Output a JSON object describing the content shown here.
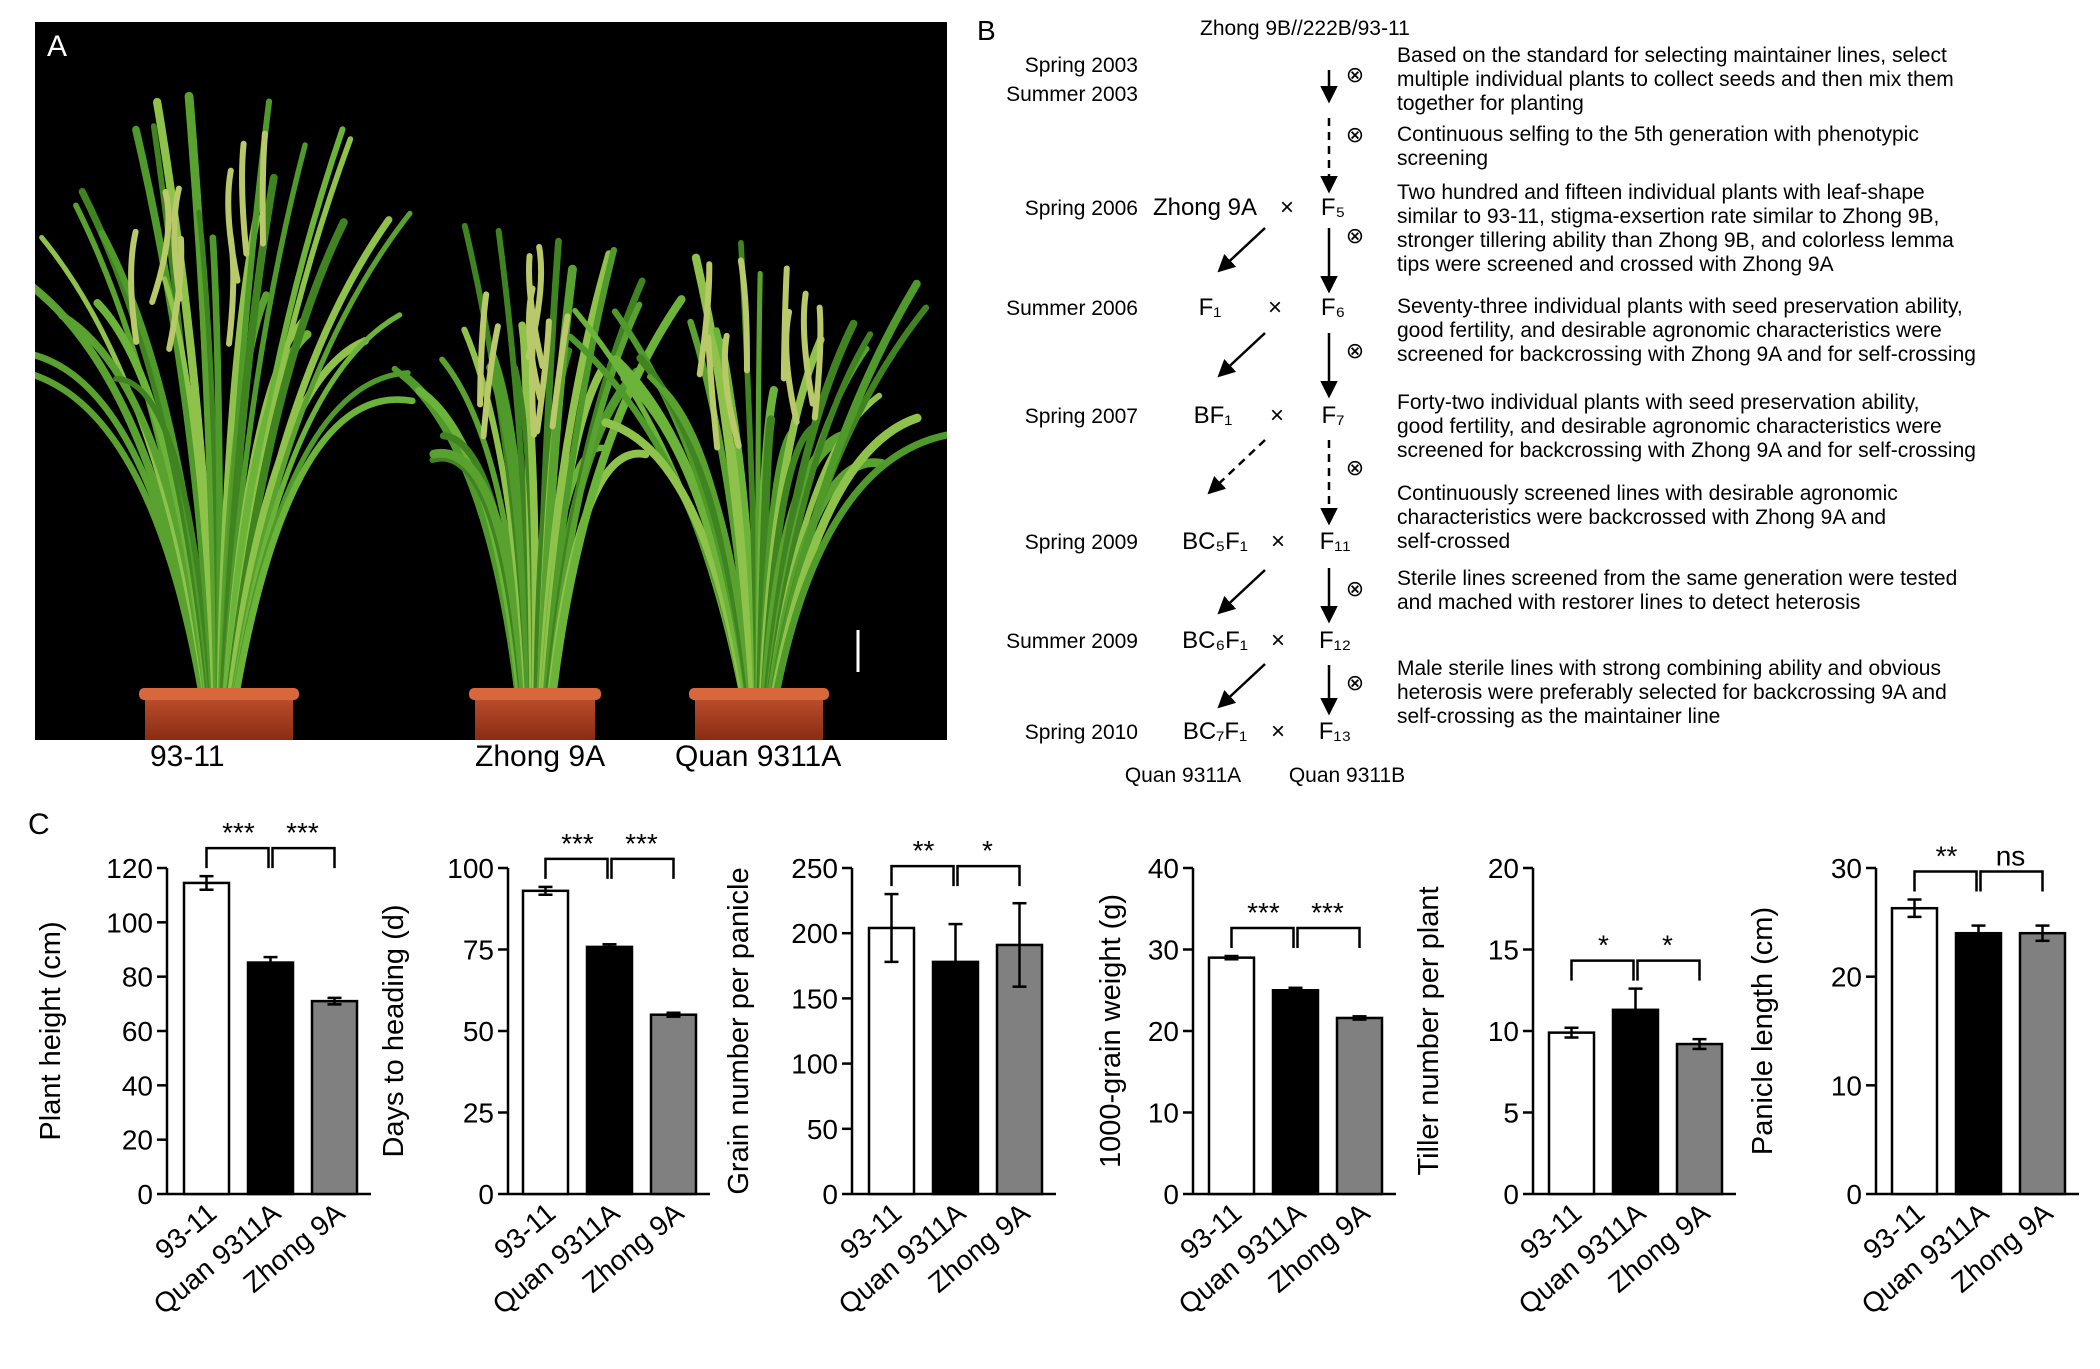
{
  "panel_a": {
    "letter": "A",
    "plant_labels": [
      "93-11",
      "Zhong 9A",
      "Quan 9311A"
    ]
  },
  "panel_b": {
    "letter": "B",
    "top_label": "Zhong 9B//222B/93-11",
    "years": [
      "Spring 2003",
      "Summer 2003",
      "Spring 2006",
      "Summer 2006",
      "Spring 2007",
      "Spring 2009",
      "Summer 2009",
      "Spring 2010"
    ],
    "left_generations": [
      "Zhong 9A",
      "F₁",
      "BF₁",
      "BC₅F₁",
      "BC₆F₁",
      "BC₇F₁"
    ],
    "right_generations": [
      "F₅",
      "F₆",
      "F₇",
      "F₁₁",
      "F₁₂",
      "F₁₃"
    ],
    "cross_symbol": "×",
    "self_symbol": "⊗",
    "final_labels": [
      "Quan 9311A",
      "Quan 9311B"
    ],
    "descriptions": [
      [
        "Based on the standard for selecting maintainer lines, select",
        "multiple individual plants to collect seeds and then mix them",
        "together for planting"
      ],
      [
        "Continuous selfing to the 5th generation with phenotypic",
        "screening"
      ],
      [
        "Two hundred and fifteen individual plants with leaf-shape",
        "similar to 93-11, stigma-exsertion rate similar to Zhong 9B,",
        "stronger tillering ability than Zhong 9B, and colorless lemma",
        "tips were screened and crossed with Zhong 9A"
      ],
      [
        "Seventy-three individual plants with seed preservation ability,",
        "good fertility, and desirable agronomic characteristics were",
        "screened for backcrossing with Zhong 9A and for self-crossing"
      ],
      [
        "Forty-two individual plants with seed preservation ability,",
        "good fertility, and desirable agronomic characteristics were",
        "screened for backcrossing with Zhong 9A and for self-crossing"
      ],
      [
        "Continuously screened lines with desirable agronomic",
        "characteristics were backcrossed with Zhong 9A and",
        "self-crossed"
      ],
      [
        "Sterile lines screened from the same generation were tested",
        "and mached with restorer lines to detect heterosis"
      ],
      [
        "Male sterile lines with strong combining ability and obvious",
        "heterosis were preferably selected for backcrossing 9A and",
        "self-crossing as the maintainer line"
      ]
    ]
  },
  "panel_c": {
    "letter": "C"
  },
  "colors": {
    "white_bar": "#ffffff",
    "black_bar": "#000000",
    "gray_bar": "#808080"
  },
  "chart_data": [
    {
      "type": "bar",
      "ylabel": "Plant height (cm)",
      "categories": [
        "93-11",
        "Quan 9311A",
        "Zhong 9A"
      ],
      "values": [
        114.5,
        85.2,
        71.0
      ],
      "errors": [
        2.5,
        2.0,
        1.2
      ],
      "ylim": [
        0,
        120
      ],
      "yticks": [
        "0",
        "20",
        "40",
        "60",
        "80",
        "100",
        "120"
      ],
      "significance": [
        "***",
        "***"
      ]
    },
    {
      "type": "bar",
      "ylabel": "Days to heading (d)",
      "categories": [
        "93-11",
        "Quan 9311A",
        "Zhong 9A"
      ],
      "values": [
        93.0,
        75.8,
        55.0
      ],
      "errors": [
        1.2,
        0.8,
        0.6
      ],
      "ylim": [
        0,
        100
      ],
      "yticks": [
        "0",
        "25",
        "50",
        "75",
        "100"
      ],
      "significance": [
        "***",
        "***"
      ]
    },
    {
      "type": "bar",
      "ylabel": "Grain number per panicle",
      "categories": [
        "93-11",
        "Quan 9311A",
        "Zhong 9A"
      ],
      "values": [
        204,
        178,
        191
      ],
      "errors": [
        26,
        29,
        32
      ],
      "ylim": [
        0,
        250
      ],
      "yticks": [
        "0",
        "50",
        "100",
        "150",
        "200",
        "250"
      ],
      "significance": [
        "**",
        "*"
      ]
    },
    {
      "type": "bar",
      "ylabel": "1000-grain weight (g)",
      "categories": [
        "93-11",
        "Quan 9311A",
        "Zhong 9A"
      ],
      "values": [
        29.0,
        25.0,
        21.6
      ],
      "errors": [
        0.2,
        0.3,
        0.2
      ],
      "ylim": [
        0,
        40
      ],
      "yticks": [
        "0",
        "10",
        "20",
        "30",
        "40"
      ],
      "significance": [
        "***",
        "***"
      ]
    },
    {
      "type": "bar",
      "ylabel": "Tiller number per plant",
      "categories": [
        "93-11",
        "Quan 9311A",
        "Zhong 9A"
      ],
      "values": [
        9.9,
        11.3,
        9.2
      ],
      "errors": [
        0.3,
        1.3,
        0.3
      ],
      "ylim": [
        0,
        20
      ],
      "yticks": [
        "0",
        "5",
        "10",
        "15",
        "20"
      ],
      "significance": [
        "*",
        "*"
      ]
    },
    {
      "type": "bar",
      "ylabel": "Panicle length (cm)",
      "categories": [
        "93-11",
        "Quan 9311A",
        "Zhong 9A"
      ],
      "values": [
        26.3,
        24.0,
        24.0
      ],
      "errors": [
        0.8,
        0.7,
        0.7
      ],
      "ylim": [
        0,
        30
      ],
      "yticks": [
        "0",
        "10",
        "20",
        "30"
      ],
      "significance": [
        "**",
        "ns"
      ]
    }
  ]
}
